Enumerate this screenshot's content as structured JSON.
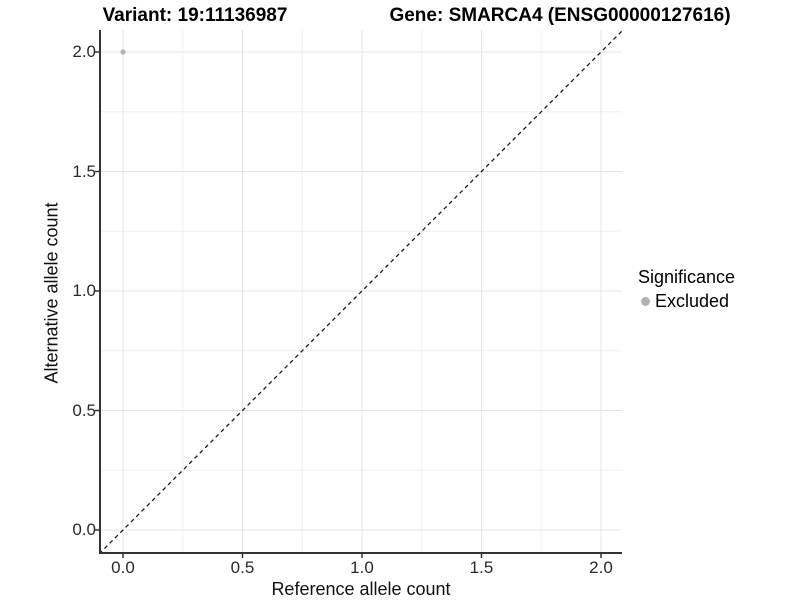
{
  "titles": {
    "variant": "Variant: 19:11136987",
    "gene": "Gene: SMARCA4 (ENSG00000127616)"
  },
  "legend": {
    "title": "Significance",
    "position": "right",
    "items": [
      {
        "label": "Excluded",
        "color": "#b3b3b3"
      }
    ]
  },
  "chart_data": {
    "type": "scatter",
    "title_left": "Variant: 19:11136987",
    "title_right": "Gene: SMARCA4 (ENSG00000127616)",
    "xlabel": "Reference allele count",
    "ylabel": "Alternative allele count",
    "xlim": [
      -0.1,
      2.1
    ],
    "ylim": [
      -0.1,
      2.1
    ],
    "grid": "major-and-minor",
    "x_ticks": {
      "values": [
        0,
        0.5,
        1,
        1.5,
        2
      ],
      "labels": [
        "0.0",
        "0.5",
        "1.0",
        "1.5",
        "2.0"
      ]
    },
    "y_ticks": {
      "values": [
        0,
        0.5,
        1,
        1.5,
        2
      ],
      "labels": [
        "0.0",
        "0.5",
        "1.0",
        "1.5",
        "2.0"
      ]
    },
    "minor_ticks": [
      0.25,
      0.75,
      1.25,
      1.75
    ],
    "series": [
      {
        "name": "Excluded",
        "color": "#b3b3b3",
        "points": [
          {
            "x": 0,
            "y": 2
          }
        ]
      }
    ],
    "reference_line": {
      "kind": "identity",
      "slope": 1,
      "intercept": 0,
      "style": "dashed",
      "color": "#1a1a1a"
    },
    "legend_position": "right"
  },
  "colors": {
    "background": "#ffffff",
    "grid_major": "#e4e4e4",
    "grid_minor": "#f0f0f0",
    "axis_line": "#333333",
    "tick_mark": "#333333",
    "point": "#b3b3b3",
    "dashed_line": "#1a1a1a"
  }
}
